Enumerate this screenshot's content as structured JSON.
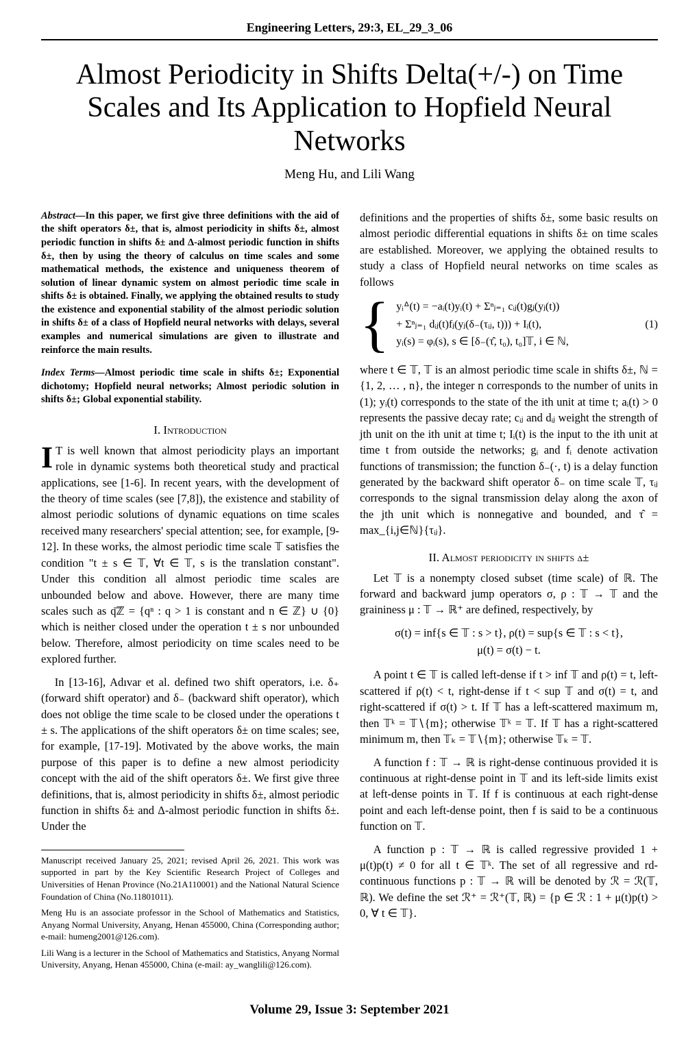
{
  "journal_header": "Engineering Letters, 29:3, EL_29_3_06",
  "title": "Almost Periodicity in Shifts Delta(+/-) on Time Scales and Its Application to Hopfield Neural Networks",
  "authors": "Meng Hu, and Lili Wang",
  "abstract_label": "Abstract—",
  "abstract_text": "In this paper, we first give three definitions with the aid of the shift operators δ±, that is, almost periodicity in shifts δ±, almost periodic function in shifts δ± and Δ-almost periodic function in shifts δ±, then by using the theory of calculus on time scales and some mathematical methods, the existence and uniqueness theorem of solution of linear dynamic system on almost periodic time scale in shifts δ± is obtained. Finally, we applying the obtained results to study the existence and exponential stability of the almost periodic solution in shifts δ± of a class of Hopfield neural networks with delays, several examples and numerical simulations are given to illustrate and reinforce the main results.",
  "index_label": "Index Terms—",
  "index_text": "Almost periodic time scale in shifts δ±; Exponential dichotomy; Hopfield neural networks; Almost periodic solution in shifts δ±; Global exponential stability.",
  "section1": "I.  Introduction",
  "intro_p1": "IT is well known that almost periodicity plays an important role in dynamic systems both theoretical study and practical applications, see [1-6]. In recent years, with the development of the theory of time scales (see [7,8]), the existence and stability of almost periodic solutions of dynamic equations on time scales received many researchers' special attention; see, for example, [9-12]. In these works, the almost periodic time scale 𝕋 satisfies the condition \"t ± s ∈ 𝕋, ∀t ∈ 𝕋, s is the translation constant\". Under this condition all almost periodic time scales are unbounded below and above. However, there are many time scales such as q͞ℤ = {qⁿ : q > 1 is constant and n ∈ ℤ} ∪ {0} which is neither closed under the operation t ± s nor unbounded below. Therefore, almost periodicity on time scales need to be explored further.",
  "intro_p2": "In [13-16], Adıvar et al. defined two shift operators, i.e. δ₊ (forward shift operator) and δ₋ (backward shift operator), which does not oblige the time scale to be closed under the operations t ± s. The applications of the shift operators δ± on time scales; see, for example, [17-19]. Motivated by the above works, the main purpose of this paper is to define a new almost periodicity concept with the aid of the shift operators δ±. We first give three definitions, that is, almost periodicity in shifts δ±, almost periodic function in shifts δ± and Δ-almost periodic function in shifts δ±. Under the",
  "fn1": "Manuscript received January 25, 2021; revised April 26, 2021. This work was supported in part by the Key Scientific Research Project of Colleges and Universities of Henan Province (No.21A110001) and the National Natural Science Foundation of China (No.11801011).",
  "fn2": "Meng Hu is an associate professor in the School of Mathematics and Statistics, Anyang Normal University, Anyang, Henan 455000, China (Corresponding author; e-mail: humeng2001@126.com).",
  "fn3": "Lili Wang is a lecturer in the School of Mathematics and Statistics, Anyang Normal University, Anyang, Henan 455000, China (e-mail: ay_wanglili@126.com).",
  "right_p1": "definitions and the properties of shifts δ±, some basic results on almost periodic differential equations in shifts δ± on time scales are established. Moreover, we applying the obtained results to study a class of Hopfield neural networks on time scales as follows",
  "eq1_line1": "yᵢᐞ(t)   =   −aᵢ(t)yᵢ(t) + Σⁿⱼ₌₁ cᵢⱼ(t)gⱼ(yⱼ(t))",
  "eq1_line2": "                  + Σⁿⱼ₌₁ dᵢⱼ(t)fⱼ(yⱼ(δ₋(τᵢⱼ, t))) + Iᵢ(t),",
  "eq1_line3": "yᵢ(s)    =   φᵢ(s), s ∈ [δ₋(τ̂, t₀), t₀]𝕋, i ∈ ℕ,",
  "eq1_num": "(1)",
  "right_p2": "where t ∈ 𝕋, 𝕋 is an almost periodic time scale in shifts δ±, ℕ = {1, 2, … , n}, the integer n corresponds to the number of units in (1); yᵢ(t) corresponds to the state of the ith unit at time t; aᵢ(t) > 0 represents the passive decay rate; cᵢⱼ and dᵢⱼ weight the strength of jth unit on the ith unit at time t; Iᵢ(t) is the input to the ith unit at time t from outside the networks; gᵢ and fᵢ denote activation functions of transmission; the function δ₋(·, t) is a delay function generated by the backward shift operator δ₋ on time scale 𝕋, τᵢⱼ corresponds to the signal transmission delay along the axon of the jth unit which is nonnegative and bounded, and τ̂ = max_{i,j∈ℕ}{τᵢⱼ}.",
  "section2": "II.  Almost periodicity in shifts δ±",
  "right_p3": "Let 𝕋 is a nonempty closed subset (time scale) of ℝ. The forward and backward jump operators σ, ρ : 𝕋 → 𝕋 and the graininess μ : 𝕋 → ℝ⁺ are defined, respectively, by",
  "eq2_line1": "σ(t) = inf{s ∈ 𝕋 : s > t}, ρ(t) = sup{s ∈ 𝕋 : s < t},",
  "eq2_line2": "μ(t) = σ(t) − t.",
  "right_p4": "A point t ∈ 𝕋 is called left-dense if t > inf 𝕋 and ρ(t) = t, left-scattered if ρ(t) < t, right-dense if t < sup 𝕋 and σ(t) = t, and right-scattered if σ(t) > t. If 𝕋 has a left-scattered maximum m, then 𝕋ᵏ = 𝕋∖{m}; otherwise 𝕋ᵏ = 𝕋. If 𝕋 has a right-scattered minimum m, then 𝕋ₖ = 𝕋∖{m}; otherwise 𝕋ₖ = 𝕋.",
  "right_p5": "A function f : 𝕋 → ℝ is right-dense continuous provided it is continuous at right-dense point in 𝕋 and its left-side limits exist at left-dense points in 𝕋. If f is continuous at each right-dense point and each left-dense point, then f is said to be a continuous function on 𝕋.",
  "right_p6": "A function p : 𝕋 → ℝ is called regressive provided 1 + μ(t)p(t) ≠ 0 for all t ∈ 𝕋ᵏ. The set of all regressive and rd-continuous functions p : 𝕋 → ℝ will be denoted by ℛ = ℛ(𝕋, ℝ). We define the set ℛ⁺ = ℛ⁺(𝕋, ℝ) = {p ∈ ℛ : 1 + μ(t)p(t) > 0, ∀ t ∈ 𝕋}.",
  "footer": "Volume 29, Issue 3: September 2021"
}
